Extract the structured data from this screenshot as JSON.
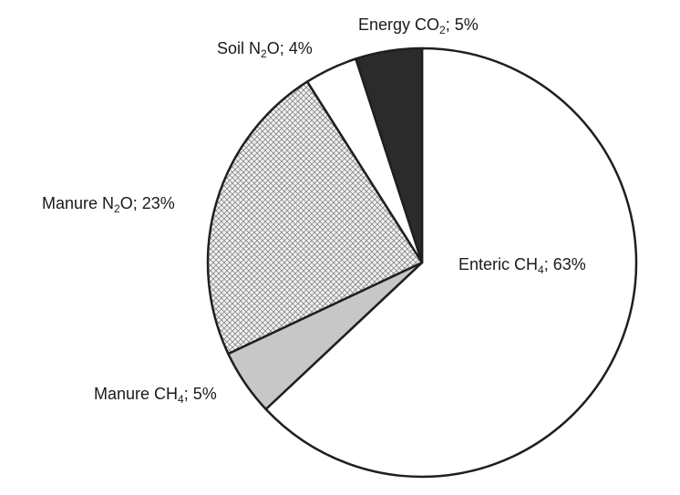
{
  "chart_data": {
    "type": "pie",
    "title": "",
    "start_angle_deg": 0,
    "direction": "clockwise",
    "slices": [
      {
        "label": "Enteric CH4; 63%",
        "label_parts": {
          "pre": "Enteric CH",
          "sub": "4",
          "post": "; 63%"
        },
        "value": 63,
        "fill": "white"
      },
      {
        "label": "Manure CH4; 5%",
        "label_parts": {
          "pre": "Manure CH",
          "sub": "4",
          "post": "; 5%"
        },
        "value": 5,
        "fill": "light-gray"
      },
      {
        "label": "Manure N2O; 23%",
        "label_parts": {
          "pre": "Manure N",
          "sub": "2",
          "post": "O; 23%"
        },
        "value": 23,
        "fill": "crosshatch"
      },
      {
        "label": "Soil N2O; 4%",
        "label_parts": {
          "pre": "Soil N",
          "sub": "2",
          "post": "O; 4%"
        },
        "value": 4,
        "fill": "white"
      },
      {
        "label": "Energy CO2; 5%",
        "label_parts": {
          "pre": "Energy CO",
          "sub": "2",
          "post": "; 5%"
        },
        "value": 5,
        "fill": "dark-gray"
      }
    ],
    "colors": {
      "white": "#ffffff",
      "light-gray": "#c7c7c7",
      "crosshatch": "#9a9a9a",
      "dark-gray": "#2b2b2b",
      "outline": "#1f1f1f"
    }
  }
}
